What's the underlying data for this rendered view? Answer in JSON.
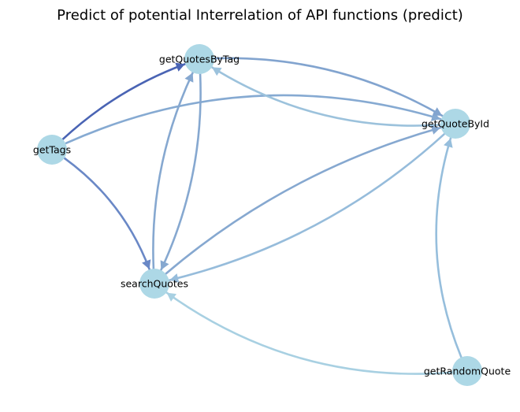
{
  "title": "Predict of potential Interrelation of API functions (predict)",
  "node_color": "#add8e6",
  "nodes": [
    {
      "id": "getQuotesByTag",
      "label": "getQuotesByTag"
    },
    {
      "id": "getQuoteById",
      "label": "getQuoteById"
    },
    {
      "id": "getTags",
      "label": "getTags"
    },
    {
      "id": "searchQuotes",
      "label": "searchQuotes"
    },
    {
      "id": "getRandomQuote",
      "label": "getRandomQuote"
    }
  ],
  "edges": [
    {
      "source": "getTags",
      "target": "getQuotesByTag",
      "color": "#4a64b4"
    },
    {
      "source": "getTags",
      "target": "searchQuotes",
      "color": "#6a88c6"
    },
    {
      "source": "getTags",
      "target": "getQuoteById",
      "color": "#86aad2"
    },
    {
      "source": "getQuotesByTag",
      "target": "searchQuotes",
      "color": "#86a8d0"
    },
    {
      "source": "searchQuotes",
      "target": "getQuotesByTag",
      "color": "#86a8d0"
    },
    {
      "source": "getQuotesByTag",
      "target": "getQuoteById",
      "color": "#82a4cf"
    },
    {
      "source": "getQuoteById",
      "target": "getQuotesByTag",
      "color": "#9cc2dc"
    },
    {
      "source": "searchQuotes",
      "target": "getQuoteById",
      "color": "#86a8d0"
    },
    {
      "source": "getQuoteById",
      "target": "searchQuotes",
      "color": "#96bcdb"
    },
    {
      "source": "getRandomQuote",
      "target": "getQuoteById",
      "color": "#96bedc"
    },
    {
      "source": "getRandomQuote",
      "target": "searchQuotes",
      "color": "#a8d0e2"
    }
  ]
}
